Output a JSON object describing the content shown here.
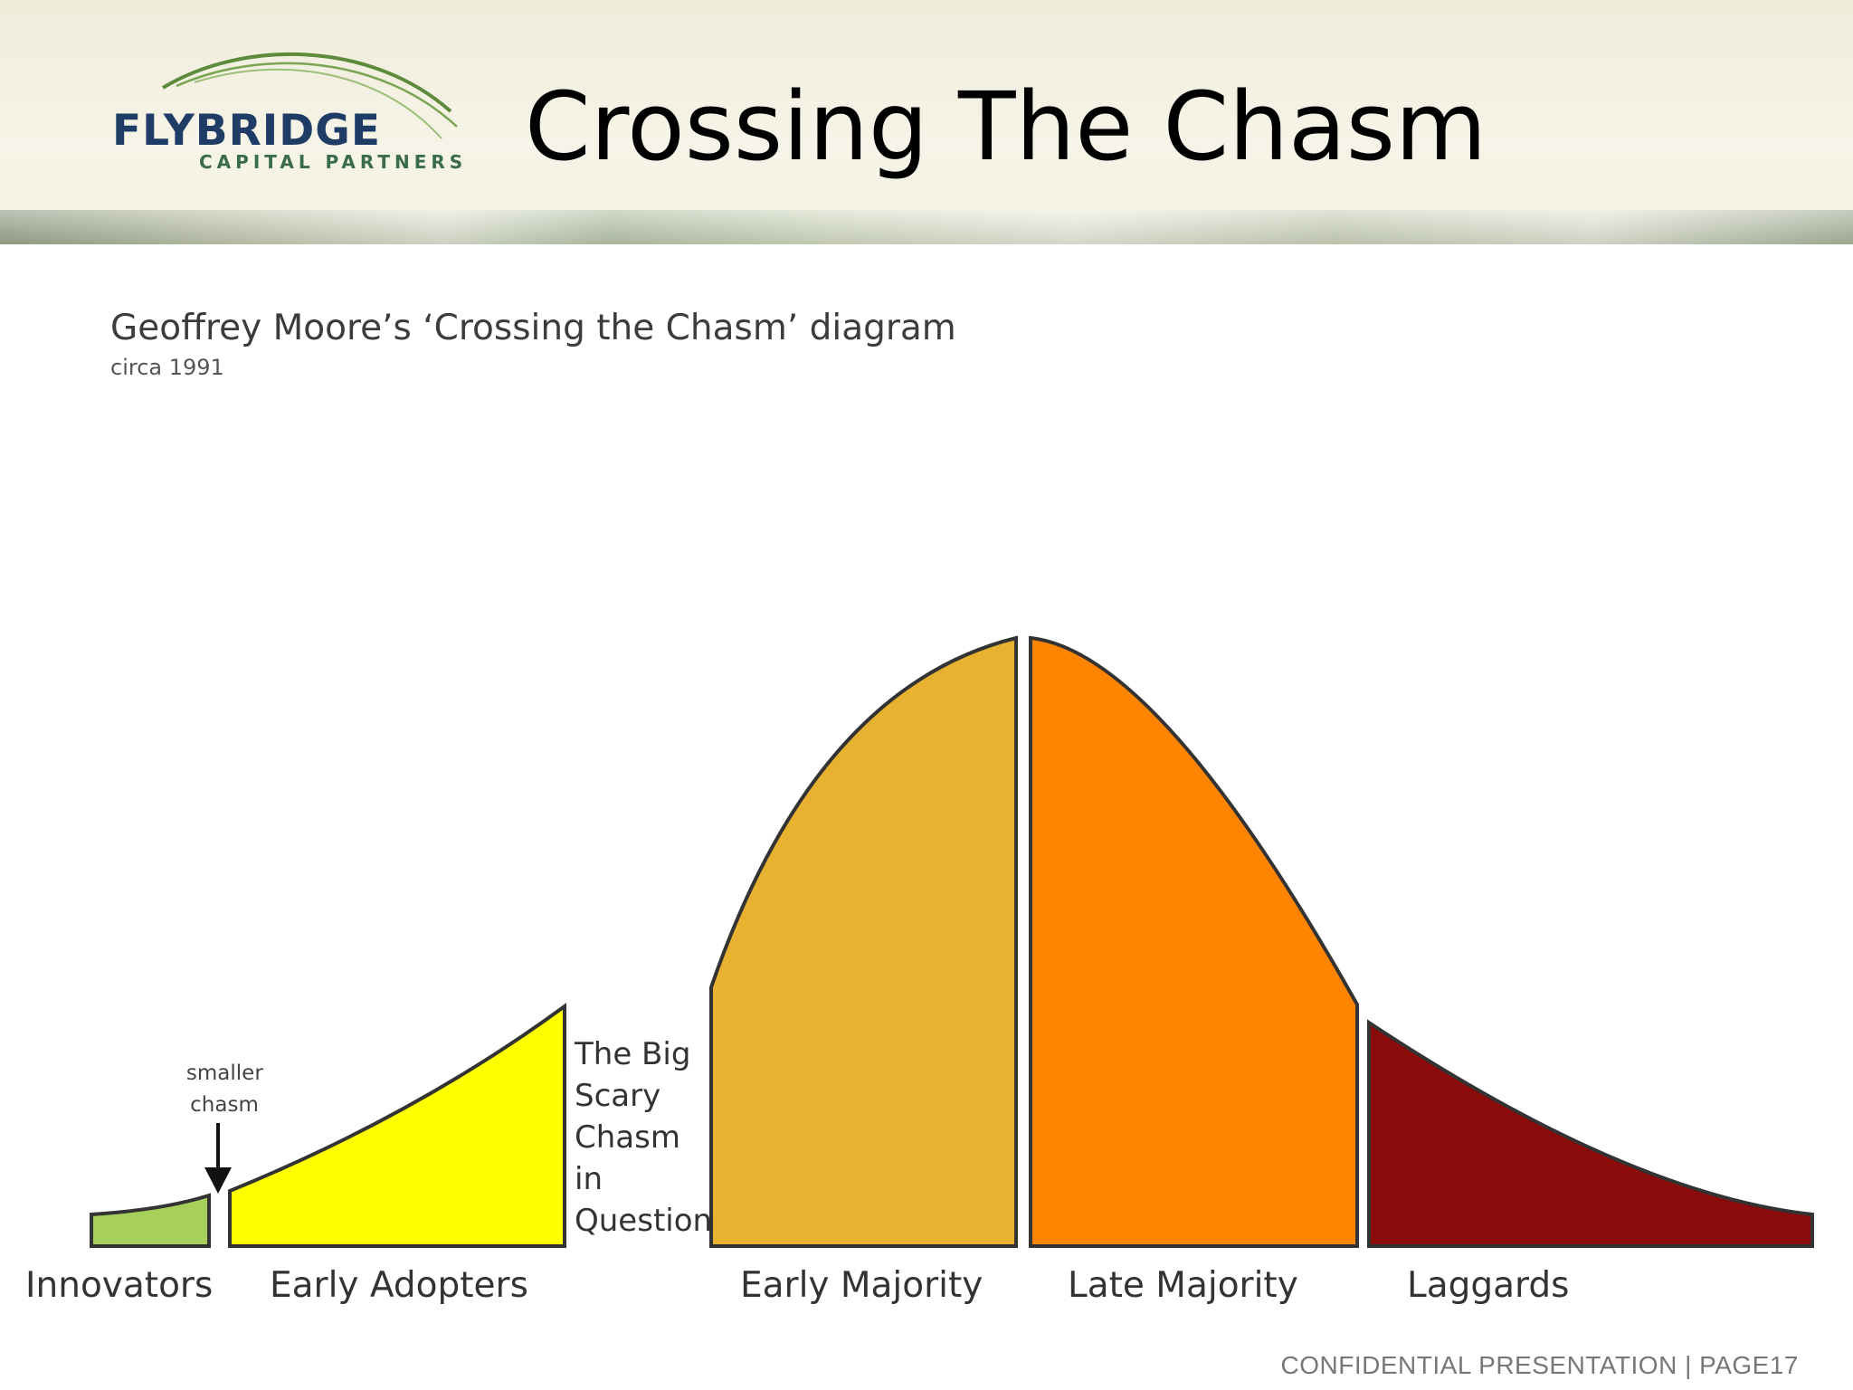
{
  "header": {
    "logo": {
      "name": "FLYBRIDGE",
      "subtitle": "CAPITAL PARTNERS",
      "name_color": "#1f3c66",
      "subtitle_color": "#3a6b4c",
      "arc_color": "#5e8a3c"
    },
    "title": "Crossing The Chasm"
  },
  "diagram": {
    "title": "Geoffrey Moore’s ‘Crossing the Chasm’ diagram",
    "subtitle": "circa 1991",
    "segments": [
      {
        "label": "Innovators",
        "color": "#a6d05a"
      },
      {
        "label": "Early Adopters",
        "color": "#ffff00"
      },
      {
        "label": "Early Majority",
        "color": "#e8b12f"
      },
      {
        "label": "Late Majority",
        "color": "#ff8400"
      },
      {
        "label": "Laggards",
        "color": "#8b0a0a"
      }
    ],
    "small_chasm_note": [
      "smaller",
      "chasm"
    ],
    "big_chasm_note": [
      "The Big",
      "Scary",
      "Chasm",
      "in",
      "Question"
    ]
  },
  "footer": {
    "text": "CONFIDENTIAL PRESENTATION | PAGE17"
  }
}
